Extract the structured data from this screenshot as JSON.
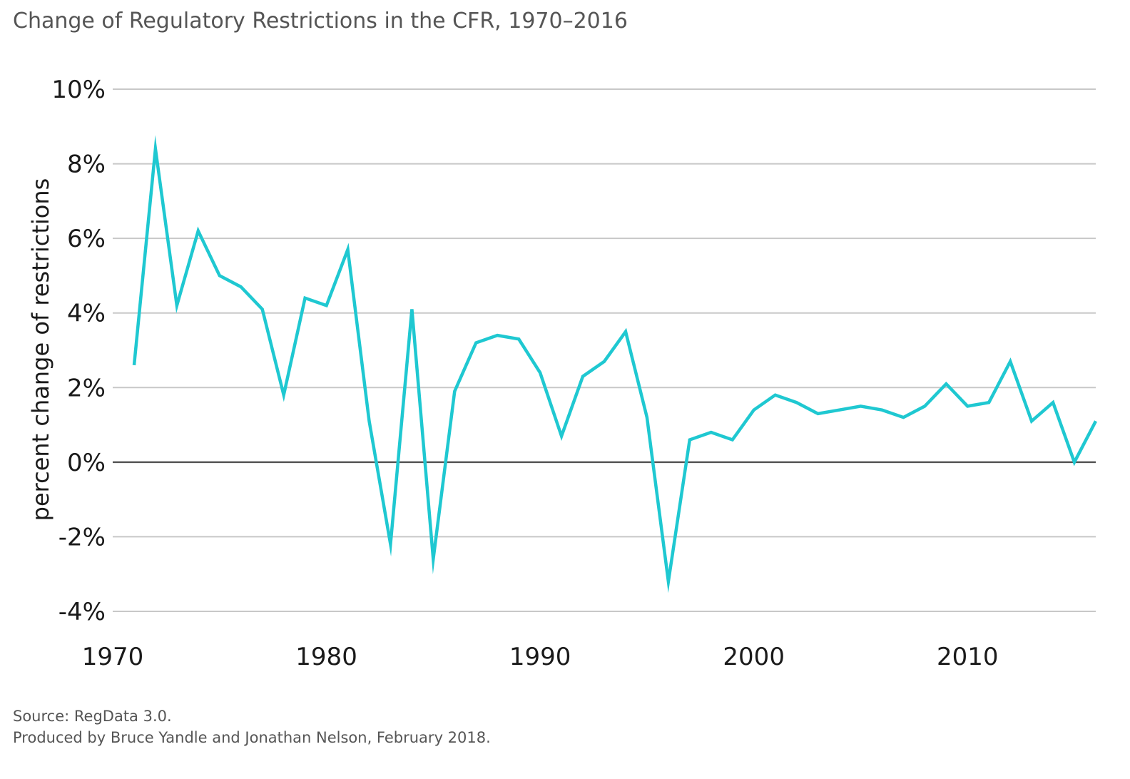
{
  "chart_data": {
    "type": "line",
    "title": "Change of Regulatory Restrictions in the CFR, 1970–2016",
    "xlabel": "",
    "ylabel": "percent change of restrictions",
    "xlim": [
      1970,
      2016
    ],
    "ylim": [
      -4,
      10
    ],
    "x_ticks": [
      1970,
      1980,
      1990,
      2000,
      2010
    ],
    "x_tick_labels": [
      "1970",
      "1980",
      "1990",
      "2000",
      "2010"
    ],
    "y_ticks": [
      10,
      8,
      6,
      4,
      2,
      0,
      -2,
      -4
    ],
    "y_tick_labels": [
      "10%",
      "8%",
      "6%",
      "4%",
      "2%",
      "0%",
      "-2%",
      "-4%"
    ],
    "grid": true,
    "legend": "none",
    "series": [
      {
        "color": "#1fc8d1",
        "x": [
          1971,
          1972,
          1973,
          1974,
          1975,
          1976,
          1977,
          1978,
          1979,
          1980,
          1981,
          1982,
          1983,
          1984,
          1985,
          1986,
          1987,
          1988,
          1989,
          1990,
          1991,
          1992,
          1993,
          1994,
          1995,
          1996,
          1997,
          1998,
          1999,
          2000,
          2001,
          2002,
          2003,
          2004,
          2005,
          2006,
          2007,
          2008,
          2009,
          2010,
          2011,
          2012,
          2013,
          2014,
          2015,
          2016
        ],
        "values": [
          2.6,
          8.4,
          4.2,
          6.2,
          5.0,
          4.7,
          4.1,
          1.8,
          4.4,
          4.2,
          5.7,
          1.1,
          -2.2,
          4.1,
          -2.6,
          1.9,
          3.2,
          3.4,
          3.3,
          2.4,
          0.7,
          2.3,
          2.7,
          3.5,
          1.2,
          -3.2,
          0.6,
          0.8,
          0.6,
          1.4,
          1.8,
          1.6,
          1.3,
          1.4,
          1.5,
          1.4,
          1.2,
          1.5,
          2.1,
          1.5,
          1.6,
          2.7,
          1.1,
          1.6,
          0.0,
          1.1
        ]
      }
    ]
  },
  "footer": {
    "source": "Source: RegData 3.0.",
    "credit": "Produced by Bruce Yandle and Jonathan Nelson, February 2018."
  },
  "colors": {
    "line": "#1fc8d1",
    "grid": "#c8c8c8",
    "zero_line": "#555555"
  }
}
